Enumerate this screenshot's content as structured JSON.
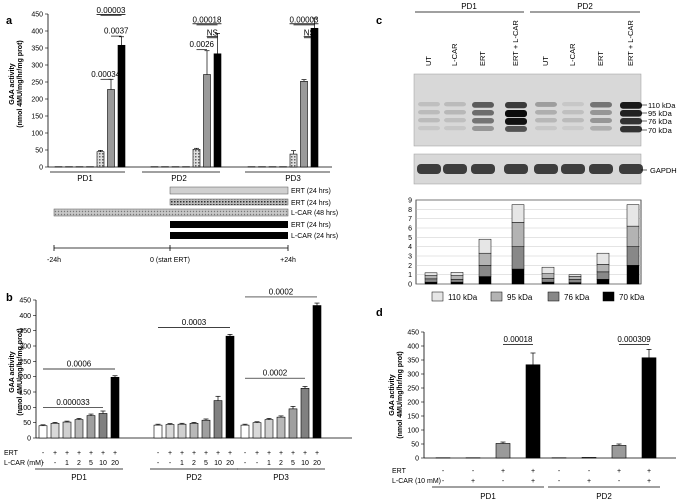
{
  "figure": {
    "panel_a": {
      "letter": "a",
      "ylabel_line1": "GAA activity",
      "ylabel_line2": "(nmol 4MU/mg/hr/mg prot)",
      "groups": [
        "PD1",
        "PD2",
        "PD3"
      ],
      "timeline": {
        "bars": [
          {
            "label": "ERT (24 hrs)",
            "fill": "#d0d0d0"
          },
          {
            "label": "ERT (24 hrs)",
            "fill": "#9a9a9a"
          },
          {
            "label": "L-CAR (48 hrs)",
            "fill": "#c8c8c8"
          },
          {
            "label": "ERT (24 hrs)",
            "fill": "#000000"
          },
          {
            "label": "L-CAR (24 hrs)",
            "fill": "#000000"
          }
        ],
        "ticks": [
          "-24h",
          "0 (start ERT)",
          "+24h"
        ]
      }
    },
    "panel_b": {
      "letter": "b",
      "ylabel_line1": "GAA activity",
      "ylabel_line2": "(nmol 4MU/mg/hr/mg prot)",
      "row_ert": "ERT",
      "row_lcar": "L-CAR (mM)",
      "ert_marks": [
        "-",
        "+",
        "+",
        "+",
        "+",
        "+",
        "+"
      ],
      "lcar_marks": [
        "-",
        "-",
        "1",
        "2",
        "5",
        "10",
        "20"
      ],
      "groups": [
        "PD1",
        "PD2",
        "PD3"
      ]
    },
    "panel_c": {
      "letter": "c",
      "groups": [
        "PD1",
        "PD2"
      ],
      "lanes": [
        "UT",
        "L-CAR",
        "ERT",
        "ERT + L-CAR",
        "UT",
        "L-CAR",
        "ERT",
        "ERT + L-CAR"
      ],
      "kda_labels": [
        "110 kDa",
        "95 kDa",
        "76 kDa",
        "70 kDa"
      ],
      "loading_label": "GAPDH",
      "legend": [
        "110 kDa",
        "95 kDa",
        "76 kDa",
        "70 kDa"
      ]
    },
    "panel_d": {
      "letter": "d",
      "ylabel_line1": "GAA activity",
      "ylabel_line2": "(nmol 4MU/mg/hr/mg prot)",
      "row_ert": "ERT",
      "row_lcar": "L-CAR (10 mM)",
      "ert_marks": [
        "-",
        "-",
        "+",
        "+"
      ],
      "lcar_marks": [
        "-",
        "+",
        "-",
        "+"
      ],
      "groups": [
        "PD1",
        "PD2"
      ]
    }
  },
  "colors": {
    "ctrl": "#ffffff",
    "lcar": "#bdbdbd",
    "ert": "#9a9a9a",
    "ert_lcar": "#000000"
  },
  "chart_data": [
    {
      "type": "bar",
      "panel": "a",
      "ylabel": "GAA activity (nmol 4MU/mg/hr/mg prot)",
      "ylim": [
        0,
        450
      ],
      "yticks": [
        0,
        50,
        100,
        150,
        200,
        250,
        300,
        350,
        400,
        450
      ],
      "groups": [
        "PD1",
        "PD2",
        "PD3"
      ],
      "bar_styles": [
        "ctrl",
        "ctrl",
        "ctrl",
        "ctrl",
        "lcar",
        "ert",
        "ert_lcar"
      ],
      "values": [
        [
          1,
          1,
          1,
          1,
          45,
          228,
          358
        ],
        [
          1,
          1,
          1,
          1,
          52,
          272,
          333
        ],
        [
          1,
          1,
          1,
          1,
          38,
          252,
          408
        ]
      ],
      "errors": [
        [
          0,
          0,
          0,
          0,
          4,
          30,
          25
        ],
        [
          0,
          0,
          0,
          0,
          3,
          70,
          60
        ],
        [
          0,
          0,
          0,
          0,
          10,
          5,
          30
        ]
      ],
      "annotations": [
        {
          "group": 0,
          "from": 4,
          "to": 5,
          "text": "0.00034",
          "y": 258,
          "underline": false
        },
        {
          "group": 0,
          "from": 5,
          "to": 6,
          "text": "0.0037",
          "y": 385,
          "underline": false
        },
        {
          "group": 0,
          "from": 4,
          "to": 6,
          "text": "0.00003",
          "y": 445,
          "underline": true
        },
        {
          "group": 1,
          "from": 4,
          "to": 5,
          "text": "0.0026",
          "y": 345,
          "underline": false
        },
        {
          "group": 1,
          "from": 5,
          "to": 6,
          "text": "NS",
          "y": 380,
          "underline": true
        },
        {
          "group": 1,
          "from": 4,
          "to": 6,
          "text": "0.00018",
          "y": 418,
          "underline": true
        },
        {
          "group": 2,
          "from": 5,
          "to": 6,
          "text": "NS",
          "y": 380,
          "underline": true
        },
        {
          "group": 2,
          "from": 4,
          "to": 6,
          "text": "0.00003",
          "y": 418,
          "underline": true
        }
      ]
    },
    {
      "type": "bar",
      "panel": "b",
      "ylabel": "GAA activity (nmol 4MU/mg/hr/mg prot)",
      "ylim": [
        0,
        450
      ],
      "yticks": [
        0,
        50,
        100,
        150,
        200,
        250,
        300,
        350,
        400,
        450
      ],
      "groups": [
        "PD1",
        "PD2",
        "PD3"
      ],
      "bar_fills": [
        "#ffffff",
        "#d9d9d9",
        "#d0d0d0",
        "#b8b8b8",
        "#9f9f9f",
        "#808080",
        "#000000"
      ],
      "values": [
        [
          40,
          48,
          52,
          60,
          73,
          80,
          198
        ],
        [
          42,
          44,
          45,
          48,
          58,
          122,
          332
        ],
        [
          42,
          50,
          60,
          68,
          95,
          162,
          432
        ]
      ],
      "errors": [
        [
          3,
          3,
          3,
          4,
          5,
          8,
          5
        ],
        [
          3,
          3,
          3,
          3,
          4,
          14,
          6
        ],
        [
          3,
          3,
          4,
          4,
          8,
          6,
          8
        ]
      ],
      "annotations": [
        {
          "group": 0,
          "from": 0,
          "to": 5,
          "text": "0.000033",
          "y": 100
        },
        {
          "group": 0,
          "from": 0,
          "to": 6,
          "text": "0.0006",
          "y": 225
        },
        {
          "group": 1,
          "from": 0,
          "to": 6,
          "text": "0.0003",
          "y": 360
        },
        {
          "group": 2,
          "from": 0,
          "to": 5,
          "text": "0.0002",
          "y": 195
        },
        {
          "group": 2,
          "from": 0,
          "to": 6,
          "text": "0.0002",
          "y": 460
        }
      ]
    },
    {
      "type": "bar",
      "stacked": true,
      "panel": "c",
      "ylim": [
        0,
        9
      ],
      "yticks": [
        0,
        1,
        2,
        3,
        4,
        5,
        6,
        7,
        8,
        9
      ],
      "categories": [
        "PD1 UT",
        "PD1 L-CAR",
        "PD1 ERT",
        "PD1 ERT + L-CAR",
        "PD2 UT",
        "PD2 L-CAR",
        "PD2 ERT",
        "PD2 ERT + L-CAR"
      ],
      "series": [
        {
          "name": "70 kDa",
          "fill": "#000000",
          "values": [
            0.2,
            0.2,
            0.8,
            1.6,
            0.2,
            0.15,
            0.5,
            2.0
          ]
        },
        {
          "name": "76 kDa",
          "fill": "#888888",
          "values": [
            0.35,
            0.3,
            1.2,
            2.4,
            0.4,
            0.35,
            0.8,
            2.0
          ]
        },
        {
          "name": "95 kDa",
          "fill": "#b3b3b3",
          "values": [
            0.35,
            0.4,
            1.3,
            2.6,
            0.5,
            0.3,
            0.8,
            2.2
          ]
        },
        {
          "name": "110 kDa",
          "fill": "#e6e6e6",
          "values": [
            0.3,
            0.35,
            1.5,
            1.9,
            0.7,
            0.2,
            1.2,
            2.3
          ]
        }
      ]
    },
    {
      "type": "bar",
      "panel": "d",
      "ylabel": "GAA activity (nmol 4MU/mg/hr/mg prot)",
      "ylim": [
        0,
        450
      ],
      "yticks": [
        0,
        50,
        100,
        150,
        200,
        250,
        300,
        350,
        400,
        450
      ],
      "groups": [
        "PD1",
        "PD2"
      ],
      "bar_styles": [
        "ctrl",
        "lcar",
        "ert",
        "ert_lcar"
      ],
      "values": [
        [
          1,
          1,
          52,
          333
        ],
        [
          1,
          2,
          45,
          358
        ]
      ],
      "errors": [
        [
          0,
          0,
          5,
          42
        ],
        [
          0,
          0,
          5,
          30
        ]
      ],
      "annotations": [
        {
          "group": 0,
          "from": 2,
          "to": 3,
          "text": "0.00018",
          "y": 405
        },
        {
          "group": 1,
          "from": 2,
          "to": 3,
          "text": "0.000309",
          "y": 405
        }
      ]
    }
  ]
}
